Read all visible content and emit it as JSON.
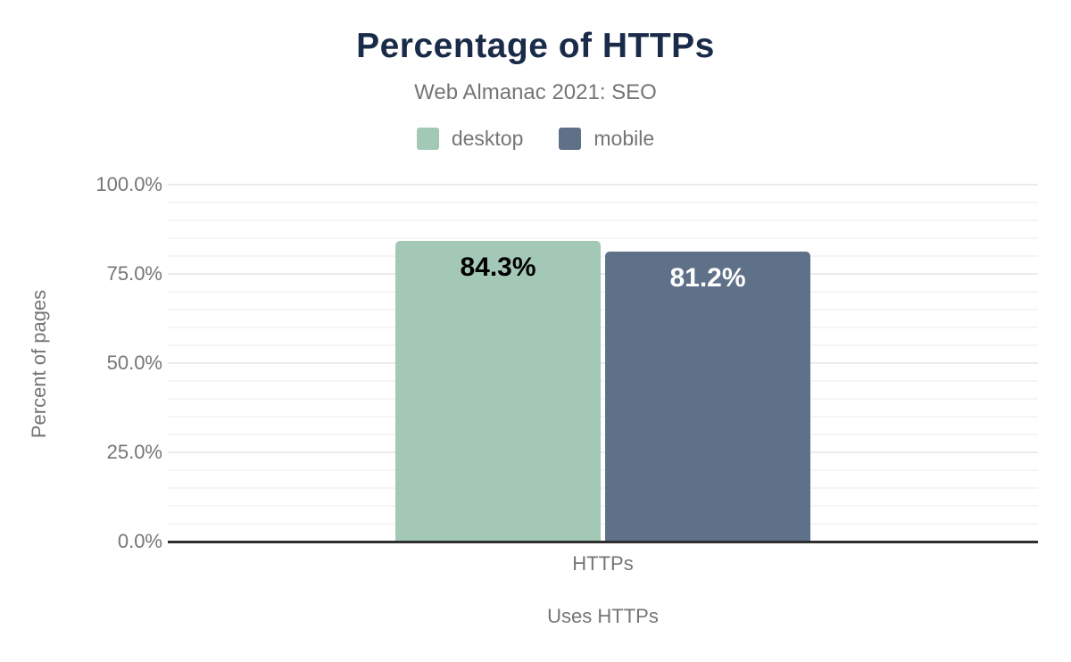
{
  "chart_data": {
    "type": "bar",
    "title": "Percentage of HTTPs",
    "subtitle": "Web Almanac 2021: SEO",
    "categories": [
      "HTTPs"
    ],
    "series": [
      {
        "name": "desktop",
        "values": [
          84.3
        ],
        "value_labels": [
          "84.3%"
        ],
        "color": "#a4c8b6",
        "label_color": "#000000"
      },
      {
        "name": "mobile",
        "values": [
          81.2
        ],
        "value_labels": [
          "81.2%"
        ],
        "color": "#5f7089",
        "label_color": "#ffffff"
      }
    ],
    "xlabel": "Uses HTTPs",
    "ylabel": "Percent of pages",
    "ylim": [
      0,
      100
    ],
    "y_ticks": [
      {
        "value": 0,
        "label": "0.0%"
      },
      {
        "value": 25,
        "label": "25.0%"
      },
      {
        "value": 50,
        "label": "50.0%"
      },
      {
        "value": 75,
        "label": "75.0%"
      },
      {
        "value": 100,
        "label": "100.0%"
      }
    ],
    "minor_grid_step": 5,
    "major_grid_step": 25,
    "grid": true,
    "legend_position": "top"
  },
  "colors": {
    "background": "#ffffff",
    "title": "#1a2b49",
    "axis_text": "#757575",
    "baseline": "#2f2f2f",
    "major_gridline": "#ebebeb",
    "minor_gridline": "#f5f5f5",
    "desktop": "#a4c8b6",
    "mobile": "#5f7089"
  }
}
